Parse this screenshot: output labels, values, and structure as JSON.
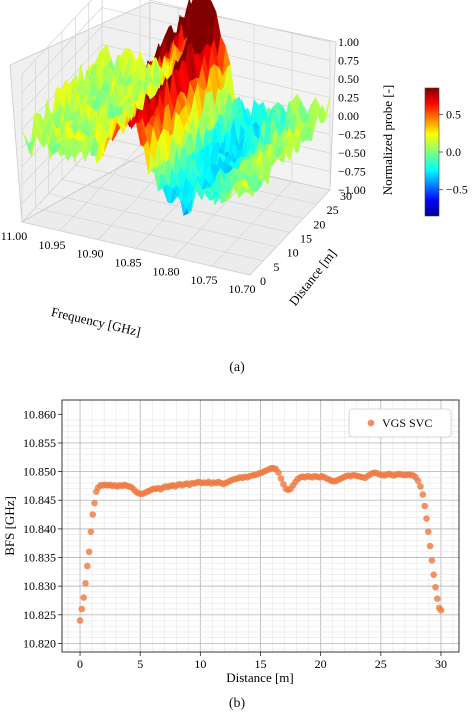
{
  "captions": {
    "a": "(a)",
    "b": "(b)"
  },
  "chart_data": [
    {
      "type": "surface",
      "xlabel": "Frequency [GHz]",
      "ylabel": "Distance [m]",
      "zlabel": "Normalized probe [-]",
      "xticks": [
        "10.70",
        "10.75",
        "10.80",
        "10.85",
        "10.90",
        "10.95",
        "11.00"
      ],
      "yticks": [
        "0",
        "5",
        "10",
        "15",
        "20",
        "25",
        "30"
      ],
      "zticks": [
        "−1.00",
        "−0.75",
        "−0.50",
        "−0.25",
        "0.00",
        "0.25",
        "0.50",
        "0.75",
        "1.00"
      ],
      "xlim": [
        10.7,
        11.0
      ],
      "ylim": [
        0,
        30
      ],
      "zlim": [
        -1.0,
        1.0
      ],
      "colorbar": {
        "ticks": [
          "0.5",
          "0.0",
          "−0.5"
        ],
        "range": [
          -0.85,
          0.85
        ],
        "colormap": "jet"
      },
      "grid": true
    },
    {
      "type": "scatter",
      "xlabel": "Distance [m]",
      "ylabel": "BFS [GHz]",
      "xlim": [
        -1.5,
        31.5
      ],
      "ylim": [
        10.8185,
        10.8625
      ],
      "xticks": [
        0,
        5,
        10,
        15,
        20,
        25,
        30
      ],
      "yticks": [
        10.82,
        10.825,
        10.83,
        10.835,
        10.84,
        10.845,
        10.85,
        10.855,
        10.86
      ],
      "ytick_labels": [
        "10.820",
        "10.825",
        "10.830",
        "10.835",
        "10.840",
        "10.845",
        "10.850",
        "10.855",
        "10.860"
      ],
      "legend_position": "top-right",
      "grid": true,
      "marker_color": "#ee7b43",
      "series": [
        {
          "name": "VGS SVC",
          "points": [
            [
              0.0,
              10.824
            ],
            [
              0.15,
              10.826
            ],
            [
              0.3,
              10.828
            ],
            [
              0.45,
              10.8305
            ],
            [
              0.6,
              10.8335
            ],
            [
              0.75,
              10.836
            ],
            [
              0.9,
              10.8395
            ],
            [
              1.05,
              10.8425
            ],
            [
              1.2,
              10.8445
            ],
            [
              1.35,
              10.8465
            ],
            [
              1.5,
              10.8472
            ],
            [
              1.7,
              10.8476
            ],
            [
              1.9,
              10.8476
            ],
            [
              2.1,
              10.8477
            ],
            [
              2.3,
              10.8476
            ],
            [
              2.5,
              10.8477
            ],
            [
              2.7,
              10.8475
            ],
            [
              2.9,
              10.8476
            ],
            [
              3.1,
              10.8474
            ],
            [
              3.3,
              10.8476
            ],
            [
              3.5,
              10.8475
            ],
            [
              3.7,
              10.8477
            ],
            [
              3.9,
              10.8475
            ],
            [
              4.1,
              10.8474
            ],
            [
              4.3,
              10.8472
            ],
            [
              4.5,
              10.8468
            ],
            [
              4.7,
              10.8464
            ],
            [
              4.9,
              10.8462
            ],
            [
              5.1,
              10.8461
            ],
            [
              5.3,
              10.8462
            ],
            [
              5.5,
              10.8464
            ],
            [
              5.7,
              10.8466
            ],
            [
              5.9,
              10.8468
            ],
            [
              6.1,
              10.847
            ],
            [
              6.3,
              10.847
            ],
            [
              6.5,
              10.8471
            ],
            [
              6.7,
              10.8469
            ],
            [
              6.9,
              10.8472
            ],
            [
              7.1,
              10.8474
            ],
            [
              7.3,
              10.8473
            ],
            [
              7.5,
              10.8475
            ],
            [
              7.7,
              10.8476
            ],
            [
              7.9,
              10.8474
            ],
            [
              8.1,
              10.8477
            ],
            [
              8.3,
              10.8478
            ],
            [
              8.5,
              10.8476
            ],
            [
              8.7,
              10.8478
            ],
            [
              8.9,
              10.8479
            ],
            [
              9.1,
              10.8477
            ],
            [
              9.3,
              10.848
            ],
            [
              9.5,
              10.8479
            ],
            [
              9.7,
              10.8481
            ],
            [
              9.9,
              10.8482
            ],
            [
              10.1,
              10.848
            ],
            [
              10.3,
              10.8481
            ],
            [
              10.5,
              10.848
            ],
            [
              10.7,
              10.8482
            ],
            [
              10.9,
              10.8479
            ],
            [
              11.1,
              10.8481
            ],
            [
              11.3,
              10.848
            ],
            [
              11.5,
              10.8482
            ],
            [
              11.7,
              10.848
            ],
            [
              11.9,
              10.8478
            ],
            [
              12.1,
              10.848
            ],
            [
              12.3,
              10.8482
            ],
            [
              12.5,
              10.8484
            ],
            [
              12.7,
              10.8486
            ],
            [
              12.9,
              10.8487
            ],
            [
              13.1,
              10.8488
            ],
            [
              13.3,
              10.849
            ],
            [
              13.5,
              10.8489
            ],
            [
              13.7,
              10.8491
            ],
            [
              13.9,
              10.849
            ],
            [
              14.1,
              10.8492
            ],
            [
              14.3,
              10.8493
            ],
            [
              14.5,
              10.8494
            ],
            [
              14.7,
              10.8495
            ],
            [
              14.9,
              10.8497
            ],
            [
              15.1,
              10.8498
            ],
            [
              15.3,
              10.85
            ],
            [
              15.5,
              10.8502
            ],
            [
              15.7,
              10.8504
            ],
            [
              15.9,
              10.8506
            ],
            [
              16.1,
              10.8506
            ],
            [
              16.3,
              10.8504
            ],
            [
              16.5,
              10.8498
            ],
            [
              16.7,
              10.8488
            ],
            [
              16.9,
              10.8478
            ],
            [
              17.1,
              10.847
            ],
            [
              17.3,
              10.8468
            ],
            [
              17.5,
              10.847
            ],
            [
              17.7,
              10.8476
            ],
            [
              17.9,
              10.8482
            ],
            [
              18.1,
              10.8487
            ],
            [
              18.3,
              10.849
            ],
            [
              18.5,
              10.8491
            ],
            [
              18.7,
              10.849
            ],
            [
              18.9,
              10.8492
            ],
            [
              19.1,
              10.8491
            ],
            [
              19.3,
              10.849
            ],
            [
              19.5,
              10.8492
            ],
            [
              19.7,
              10.8491
            ],
            [
              19.9,
              10.849
            ],
            [
              20.1,
              10.8492
            ],
            [
              20.3,
              10.849
            ],
            [
              20.5,
              10.8488
            ],
            [
              20.7,
              10.8486
            ],
            [
              20.9,
              10.8484
            ],
            [
              21.1,
              10.8483
            ],
            [
              21.3,
              10.8484
            ],
            [
              21.5,
              10.8486
            ],
            [
              21.7,
              10.8488
            ],
            [
              21.9,
              10.849
            ],
            [
              22.1,
              10.8492
            ],
            [
              22.3,
              10.8493
            ],
            [
              22.5,
              10.8492
            ],
            [
              22.7,
              10.8494
            ],
            [
              22.9,
              10.8493
            ],
            [
              23.1,
              10.8492
            ],
            [
              23.3,
              10.8491
            ],
            [
              23.5,
              10.849
            ],
            [
              23.7,
              10.8489
            ],
            [
              23.9,
              10.8492
            ],
            [
              24.1,
              10.8495
            ],
            [
              24.3,
              10.8497
            ],
            [
              24.5,
              10.8498
            ],
            [
              24.7,
              10.8497
            ],
            [
              24.9,
              10.8495
            ],
            [
              25.1,
              10.8494
            ],
            [
              25.3,
              10.8493
            ],
            [
              25.5,
              10.8495
            ],
            [
              25.7,
              10.8496
            ],
            [
              25.9,
              10.8494
            ],
            [
              26.1,
              10.8493
            ],
            [
              26.3,
              10.8495
            ],
            [
              26.5,
              10.8496
            ],
            [
              26.7,
              10.8495
            ],
            [
              26.9,
              10.8494
            ],
            [
              27.1,
              10.8494
            ],
            [
              27.3,
              10.8495
            ],
            [
              27.5,
              10.8494
            ],
            [
              27.7,
              10.8493
            ],
            [
              27.9,
              10.849
            ],
            [
              28.1,
              10.8484
            ],
            [
              28.3,
              10.8474
            ],
            [
              28.5,
              10.846
            ],
            [
              28.65,
              10.844
            ],
            [
              28.8,
              10.8418
            ],
            [
              28.95,
              10.8395
            ],
            [
              29.1,
              10.837
            ],
            [
              29.25,
              10.8345
            ],
            [
              29.4,
              10.832
            ],
            [
              29.55,
              10.8298
            ],
            [
              29.7,
              10.8278
            ],
            [
              29.85,
              10.8262
            ],
            [
              30.0,
              10.8258
            ]
          ]
        }
      ]
    }
  ]
}
